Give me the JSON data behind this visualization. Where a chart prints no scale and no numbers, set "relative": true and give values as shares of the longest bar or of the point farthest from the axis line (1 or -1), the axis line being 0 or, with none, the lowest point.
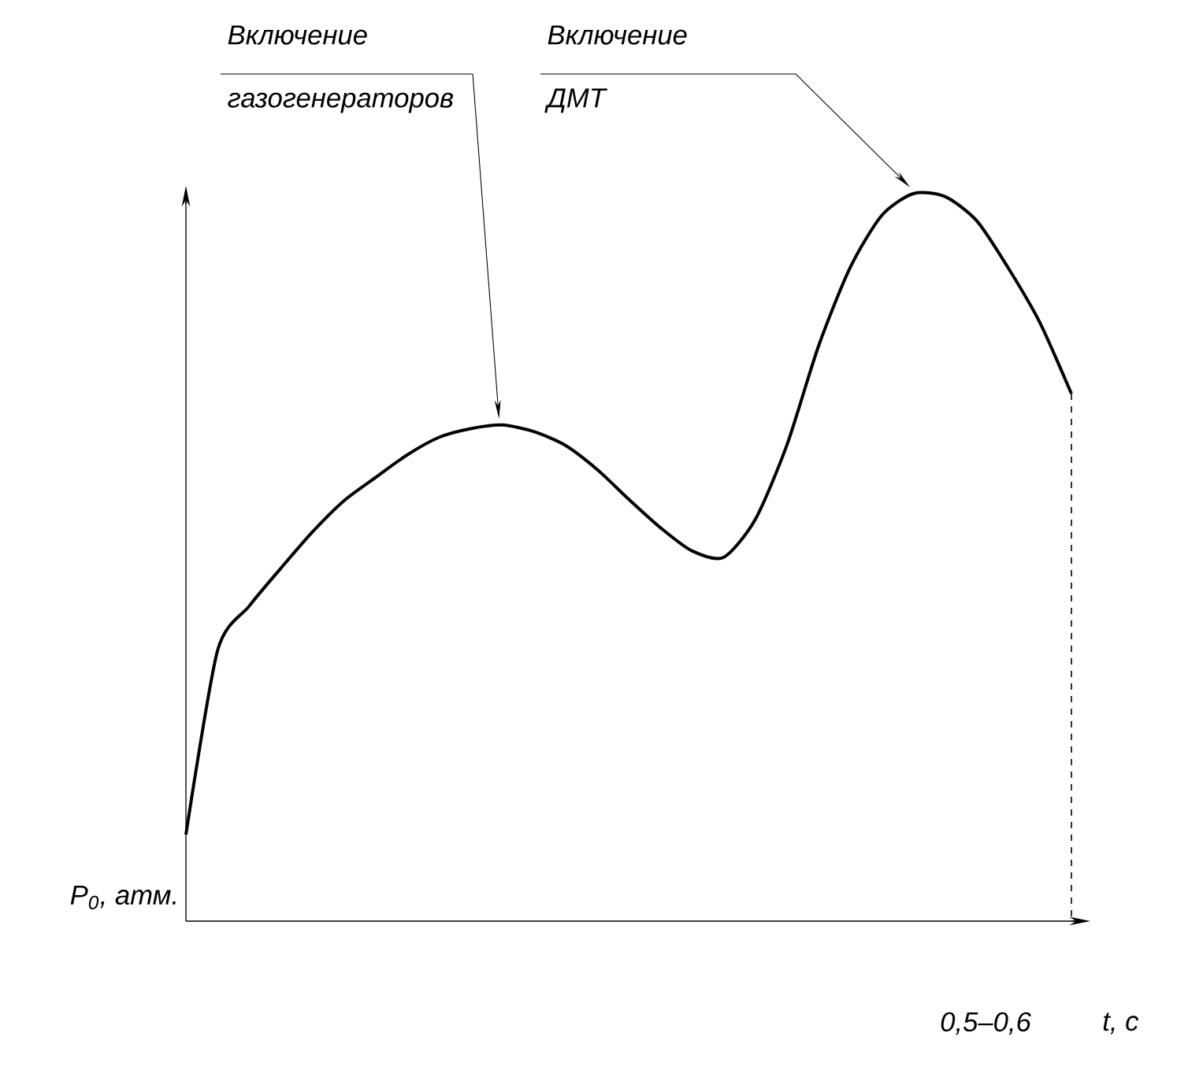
{
  "chart_data": {
    "type": "line",
    "relative": true,
    "color": "#000000",
    "marker": "none",
    "line_style": "solid",
    "ylabel": "P$_{0}$, атм.",
    "xlabel": "t, с",
    "categories": [
      null,
      null,
      null,
      null,
      null,
      null,
      null,
      null,
      null,
      null,
      null,
      null,
      null,
      null,
      null,
      null,
      null,
      null,
      null,
      null,
      null,
      null,
      null,
      null,
      null,
      null,
      null,
      null,
      null
    ],
    "values": [
      0.119,
      0.372,
      0.433,
      0.485,
      0.535,
      0.578,
      0.61,
      0.641,
      0.665,
      0.677,
      0.682,
      0.673,
      0.654,
      0.621,
      0.58,
      0.541,
      0.509,
      0.5,
      0.552,
      0.654,
      0.79,
      0.898,
      0.97,
      1,
      0.996,
      0.963,
      0.898,
      0.823,
      0.725
    ],
    "annotations": [
      "Включение газогенераторов",
      "Включение ДМТ",
      "0,5–0,6"
    ]
  }
}
